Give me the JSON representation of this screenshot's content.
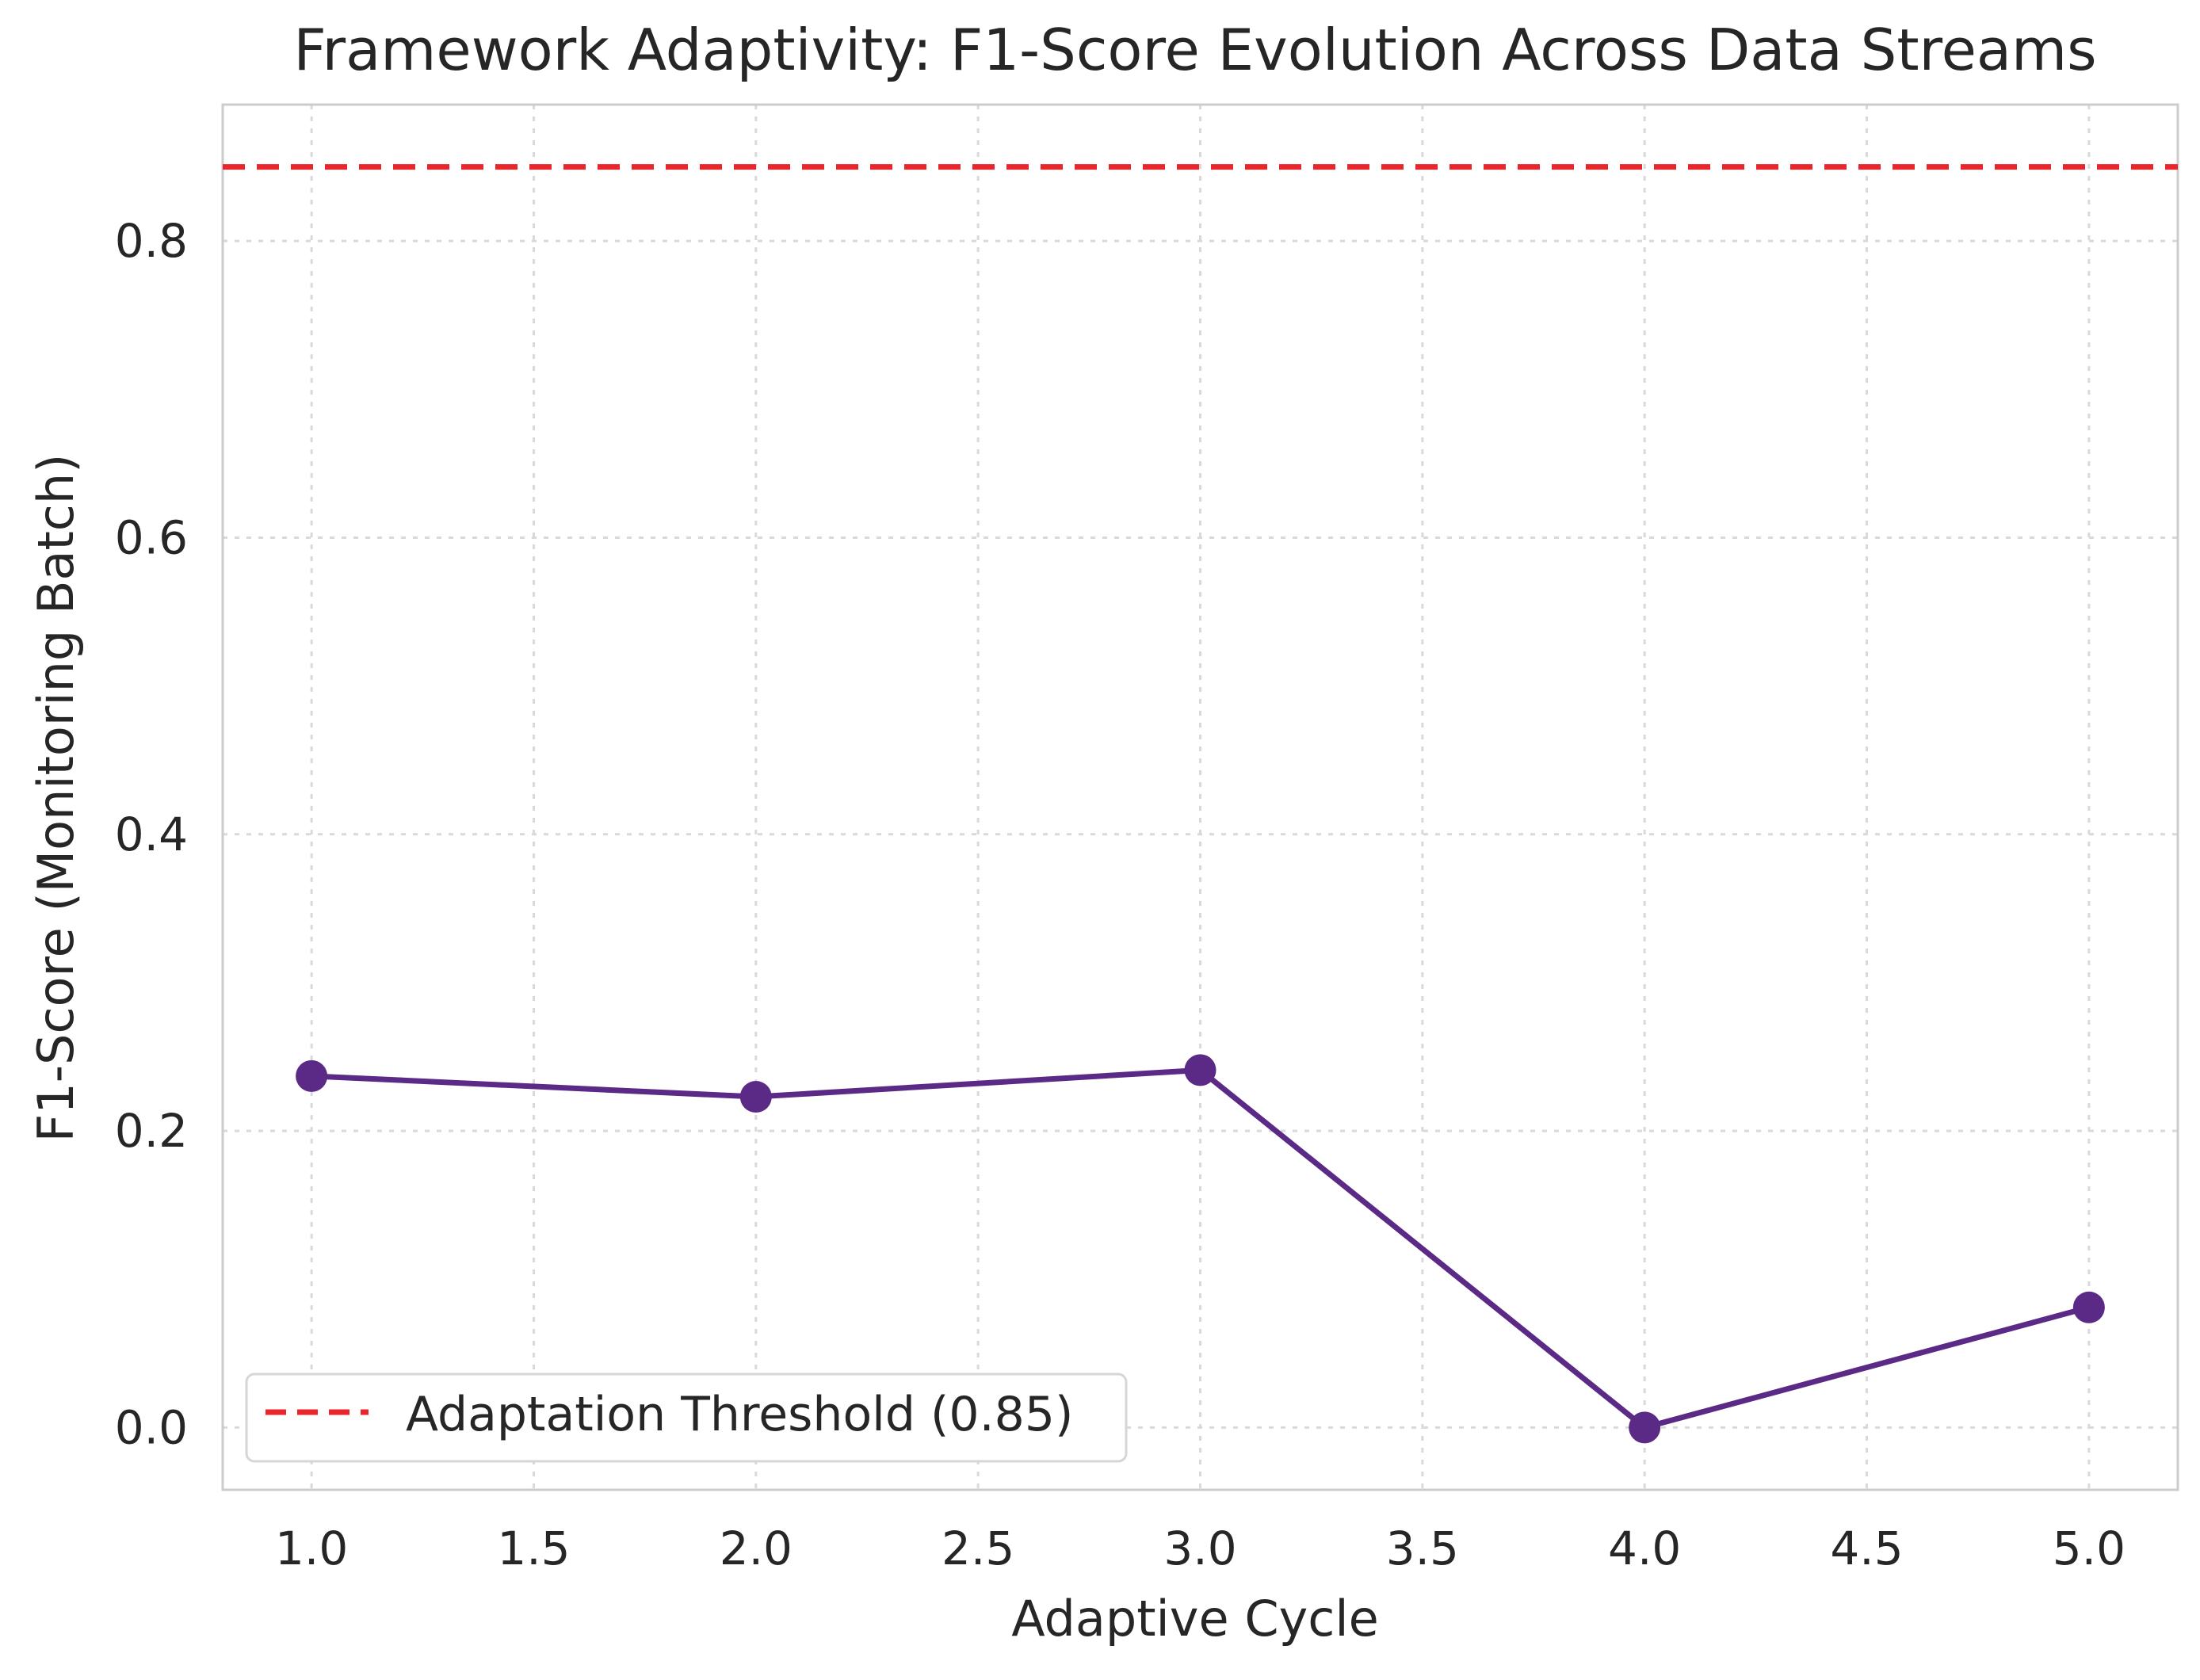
{
  "chart_data": {
    "type": "line",
    "title": "Framework Adaptivity: F1-Score Evolution Across Data Streams",
    "xlabel": "Adaptive Cycle",
    "ylabel": "F1-Score (Monitoring Batch)",
    "xlim": [
      0.8,
      5.2
    ],
    "ylim": [
      -0.042,
      0.892
    ],
    "xticks": [
      1.0,
      1.5,
      2.0,
      2.5,
      3.0,
      3.5,
      4.0,
      4.5,
      5.0
    ],
    "xtick_labels": [
      "1.0",
      "1.5",
      "2.0",
      "2.5",
      "3.0",
      "3.5",
      "4.0",
      "4.5",
      "5.0"
    ],
    "yticks": [
      0.0,
      0.2,
      0.4,
      0.6,
      0.8
    ],
    "ytick_labels": [
      "0.0",
      "0.2",
      "0.4",
      "0.6",
      "0.8"
    ],
    "grid": true,
    "series": [
      {
        "x": [
          1,
          2,
          3,
          4,
          5
        ],
        "values": [
          0.237,
          0.223,
          0.241,
          0.0,
          0.081
        ],
        "color": "#5b2a86",
        "marker": "circle"
      }
    ],
    "reference_lines": [
      {
        "y": 0.85,
        "name": "Adaptation Threshold (0.85)",
        "color": "#e8262b",
        "style": "dashed"
      }
    ],
    "legend": {
      "position": "lower-left",
      "entries": [
        "Adaptation Threshold (0.85)"
      ]
    },
    "colors": {
      "axes_edge": "#cccccc",
      "text": "#262626"
    }
  }
}
